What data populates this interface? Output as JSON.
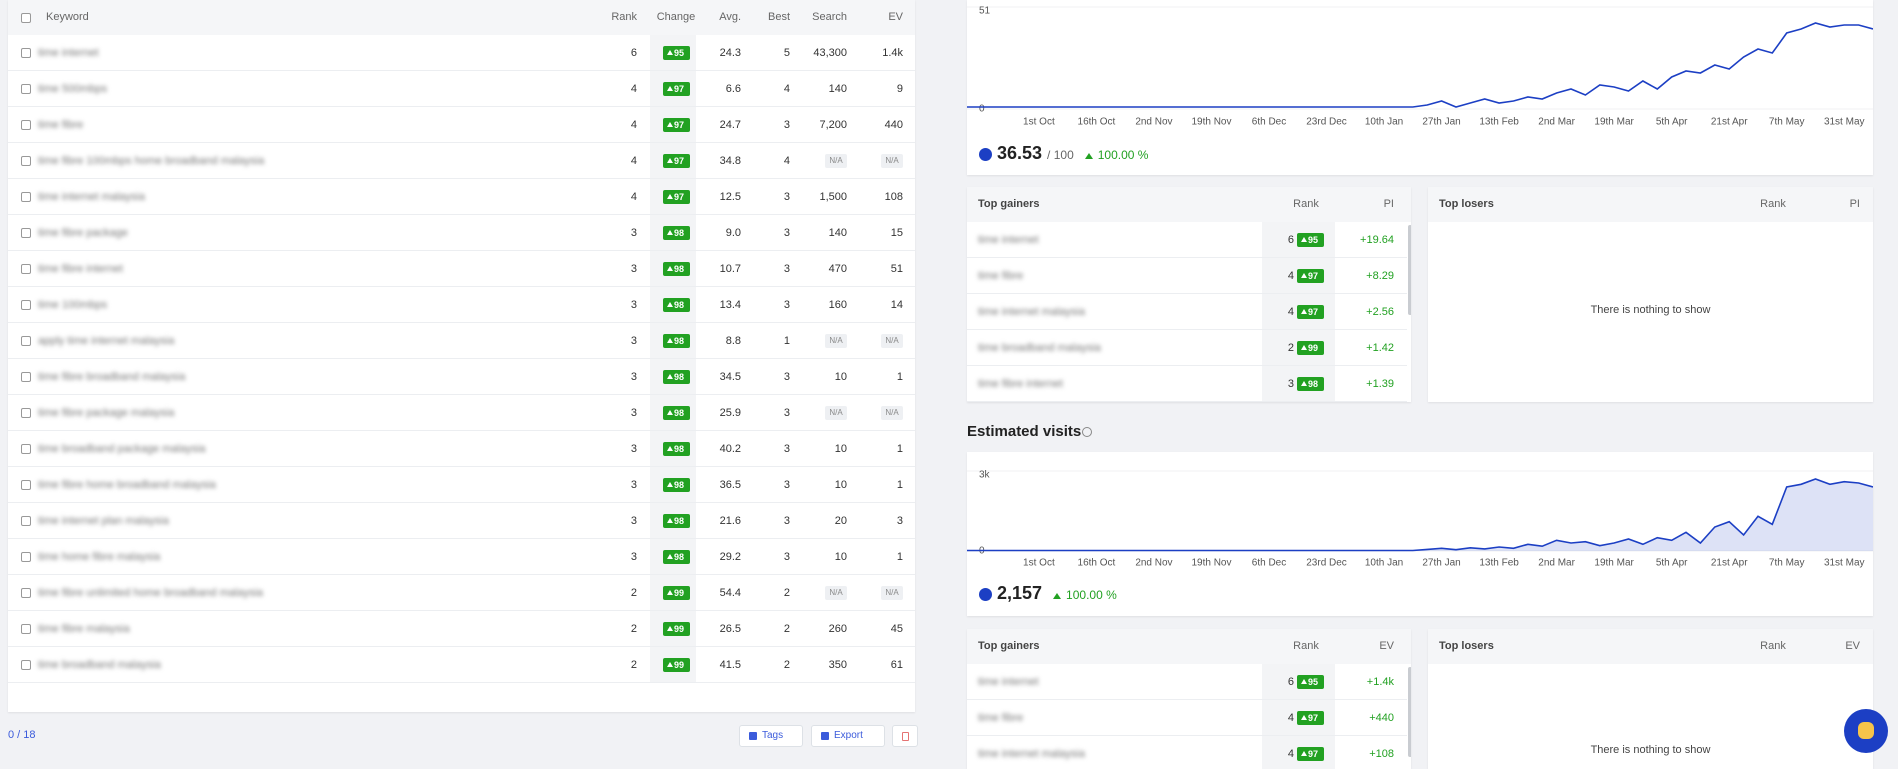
{
  "table": {
    "header": {
      "keyword": "Keyword",
      "rank": "Rank",
      "change": "Change",
      "avg": "Avg.",
      "best": "Best",
      "search": "Search",
      "ev": "EV"
    },
    "rows": [
      [
        "time internet",
        "6",
        "95",
        "24.3",
        "5",
        "43,300",
        "1.4k"
      ],
      [
        "time 500mbps",
        "4",
        "97",
        "6.6",
        "4",
        "140",
        "9"
      ],
      [
        "time fibre",
        "4",
        "97",
        "24.7",
        "3",
        "7,200",
        "440"
      ],
      [
        "time fibre 100mbps home broadband malaysia",
        "4",
        "97",
        "34.8",
        "4",
        "N/A",
        "N/A"
      ],
      [
        "time internet malaysia",
        "4",
        "97",
        "12.5",
        "3",
        "1,500",
        "108"
      ],
      [
        "time fibre package",
        "3",
        "98",
        "9.0",
        "3",
        "140",
        "15"
      ],
      [
        "time fibre internet",
        "3",
        "98",
        "10.7",
        "3",
        "470",
        "51"
      ],
      [
        "time 100mbps",
        "3",
        "98",
        "13.4",
        "3",
        "160",
        "14"
      ],
      [
        "apply time internet malaysia",
        "3",
        "98",
        "8.8",
        "1",
        "N/A",
        "N/A"
      ],
      [
        "time fibre broadband malaysia",
        "3",
        "98",
        "34.5",
        "3",
        "10",
        "1"
      ],
      [
        "time fibre package malaysia",
        "3",
        "98",
        "25.9",
        "3",
        "N/A",
        "N/A"
      ],
      [
        "time broadband package malaysia",
        "3",
        "98",
        "40.2",
        "3",
        "10",
        "1"
      ],
      [
        "time fibre home broadband malaysia",
        "3",
        "98",
        "36.5",
        "3",
        "10",
        "1"
      ],
      [
        "time internet plan malaysia",
        "3",
        "98",
        "21.6",
        "3",
        "20",
        "3"
      ],
      [
        "time home fibre malaysia",
        "3",
        "98",
        "29.2",
        "3",
        "10",
        "1"
      ],
      [
        "time fibre unlimited home broadband malaysia",
        "2",
        "99",
        "54.4",
        "2",
        "N/A",
        "N/A"
      ],
      [
        "time fibre malaysia",
        "2",
        "99",
        "26.5",
        "2",
        "260",
        "45"
      ],
      [
        "time broadband malaysia",
        "2",
        "99",
        "41.5",
        "2",
        "350",
        "61"
      ]
    ]
  },
  "footer": {
    "selected": "0 / 18",
    "tags": "Tags",
    "export": "Export"
  },
  "chart_data": [
    {
      "type": "line",
      "color": "#1c3fc4",
      "area": false,
      "categories": [
        null,
        null,
        null,
        null,
        null,
        "1st Oct",
        null,
        null,
        null,
        "16th Oct",
        null,
        null,
        null,
        "2nd Nov",
        null,
        null,
        null,
        "19th Nov",
        null,
        null,
        null,
        "6th Dec",
        null,
        null,
        null,
        "23rd Dec",
        null,
        null,
        null,
        "10th Jan",
        null,
        null,
        null,
        "27th Jan",
        null,
        null,
        null,
        "13th Feb",
        null,
        null,
        null,
        "2nd Mar",
        null,
        null,
        null,
        "19th Mar",
        null,
        null,
        null,
        "5th Apr",
        null,
        null,
        null,
        "21st Apr",
        null,
        null,
        null,
        "7th May",
        null,
        null,
        null,
        "31st May",
        null,
        null
      ],
      "values": [
        1,
        1,
        1,
        1,
        1,
        1,
        1,
        1,
        1,
        1,
        1,
        1,
        1,
        1,
        1,
        1,
        1,
        1,
        1,
        1,
        1,
        1,
        1,
        1,
        1,
        1,
        1,
        1,
        1,
        1,
        1,
        1,
        2,
        4,
        1,
        3,
        5,
        3,
        4,
        6,
        5,
        8,
        10,
        7,
        12,
        11,
        9,
        14,
        10,
        16,
        19,
        18,
        22,
        20,
        26,
        30,
        28,
        38,
        40,
        43,
        41,
        42,
        42,
        40
      ],
      "ylim": [
        0,
        51
      ],
      "yticks": [
        0,
        51
      ]
    },
    {
      "type": "line",
      "title": "Estimated visits",
      "color": "#1c3fc4",
      "area": true,
      "categories": [
        null,
        null,
        null,
        null,
        null,
        "1st Oct",
        null,
        null,
        null,
        "16th Oct",
        null,
        null,
        null,
        "2nd Nov",
        null,
        null,
        null,
        "19th Nov",
        null,
        null,
        null,
        "6th Dec",
        null,
        null,
        null,
        "23rd Dec",
        null,
        null,
        null,
        "10th Jan",
        null,
        null,
        null,
        "27th Jan",
        null,
        null,
        null,
        "13th Feb",
        null,
        null,
        null,
        "2nd Mar",
        null,
        null,
        null,
        "19th Mar",
        null,
        null,
        null,
        "5th Apr",
        null,
        null,
        null,
        "21st Apr",
        null,
        null,
        null,
        "7th May",
        null,
        null,
        null,
        "31st May",
        null,
        null
      ],
      "values": [
        20,
        20,
        20,
        20,
        20,
        20,
        20,
        20,
        20,
        20,
        20,
        20,
        20,
        20,
        20,
        20,
        20,
        20,
        20,
        20,
        20,
        20,
        20,
        20,
        20,
        20,
        20,
        20,
        20,
        20,
        20,
        20,
        60,
        100,
        50,
        120,
        80,
        150,
        100,
        250,
        180,
        400,
        300,
        350,
        200,
        300,
        450,
        250,
        500,
        400,
        700,
        300,
        900,
        1100,
        600,
        1300,
        1000,
        2400,
        2500,
        2700,
        2500,
        2600,
        2550,
        2400
      ],
      "ylim": [
        0,
        3000
      ],
      "yticks": [
        0,
        {
          "value": 3000,
          "label": "3k"
        }
      ]
    }
  ],
  "visibility_summary": {
    "score": "36.53",
    "max": "/ 100",
    "change": "100.00 %"
  },
  "visits_summary": {
    "score": "2,157",
    "change": "100.00 %"
  },
  "gainers": [
    {
      "title": "Top gainers",
      "rank_label": "Rank",
      "metric_label": "PI",
      "rows": [
        [
          "time internet",
          "6",
          "95",
          "+19.64"
        ],
        [
          "time fibre",
          "4",
          "97",
          "+8.29"
        ],
        [
          "time internet malaysia",
          "4",
          "97",
          "+2.56"
        ],
        [
          "time broadband malaysia",
          "2",
          "99",
          "+1.42"
        ],
        [
          "time fibre internet",
          "3",
          "98",
          "+1.39"
        ]
      ]
    },
    {
      "title": "Top gainers",
      "rank_label": "Rank",
      "metric_label": "EV",
      "rows": [
        [
          "time internet",
          "6",
          "95",
          "+1.4k"
        ],
        [
          "time fibre",
          "4",
          "97",
          "+440"
        ],
        [
          "time internet malaysia",
          "4",
          "97",
          "+108"
        ]
      ]
    }
  ],
  "losers": [
    {
      "title": "Top losers",
      "rank_label": "Rank",
      "metric_label": "PI",
      "empty": "There is nothing to show"
    },
    {
      "title": "Top losers",
      "rank_label": "Rank",
      "metric_label": "EV",
      "empty": "There is nothing to show"
    }
  ]
}
